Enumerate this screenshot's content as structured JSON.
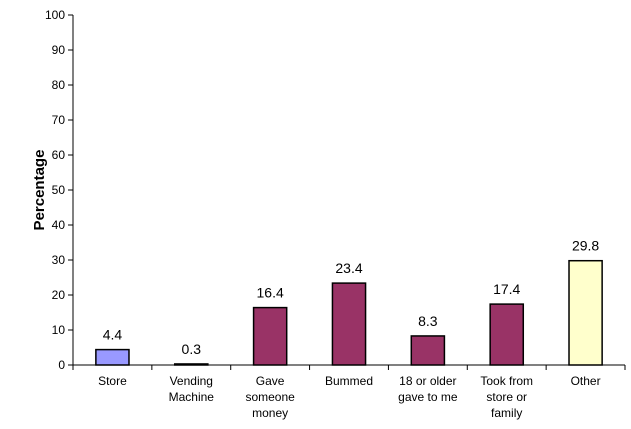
{
  "chart_data": {
    "type": "bar",
    "title": "",
    "xlabel": "",
    "ylabel": "Percentage",
    "ylim": [
      0,
      100
    ],
    "yticks": [
      0,
      10,
      20,
      30,
      40,
      50,
      60,
      70,
      80,
      90,
      100
    ],
    "grid": false,
    "legend": "none",
    "categories": [
      [
        "Store"
      ],
      [
        "Vending",
        "Machine"
      ],
      [
        "Gave",
        "someone",
        "money"
      ],
      [
        "Bummed"
      ],
      [
        "18 or older",
        "gave to me"
      ],
      [
        "Took from",
        "store or",
        "family"
      ],
      [
        "Other"
      ]
    ],
    "values": [
      4.4,
      0.3,
      16.4,
      23.4,
      8.3,
      17.4,
      29.8
    ],
    "value_labels": [
      "4.4",
      "0.3",
      "16.4",
      "23.4",
      "8.3",
      "17.4",
      "29.8"
    ],
    "bar_colors": [
      "#9999ff",
      "#993366",
      "#993366",
      "#993366",
      "#993366",
      "#993366",
      "#ffffcc"
    ],
    "axis_color": "#000000",
    "bar_outline_color": "#000000"
  }
}
